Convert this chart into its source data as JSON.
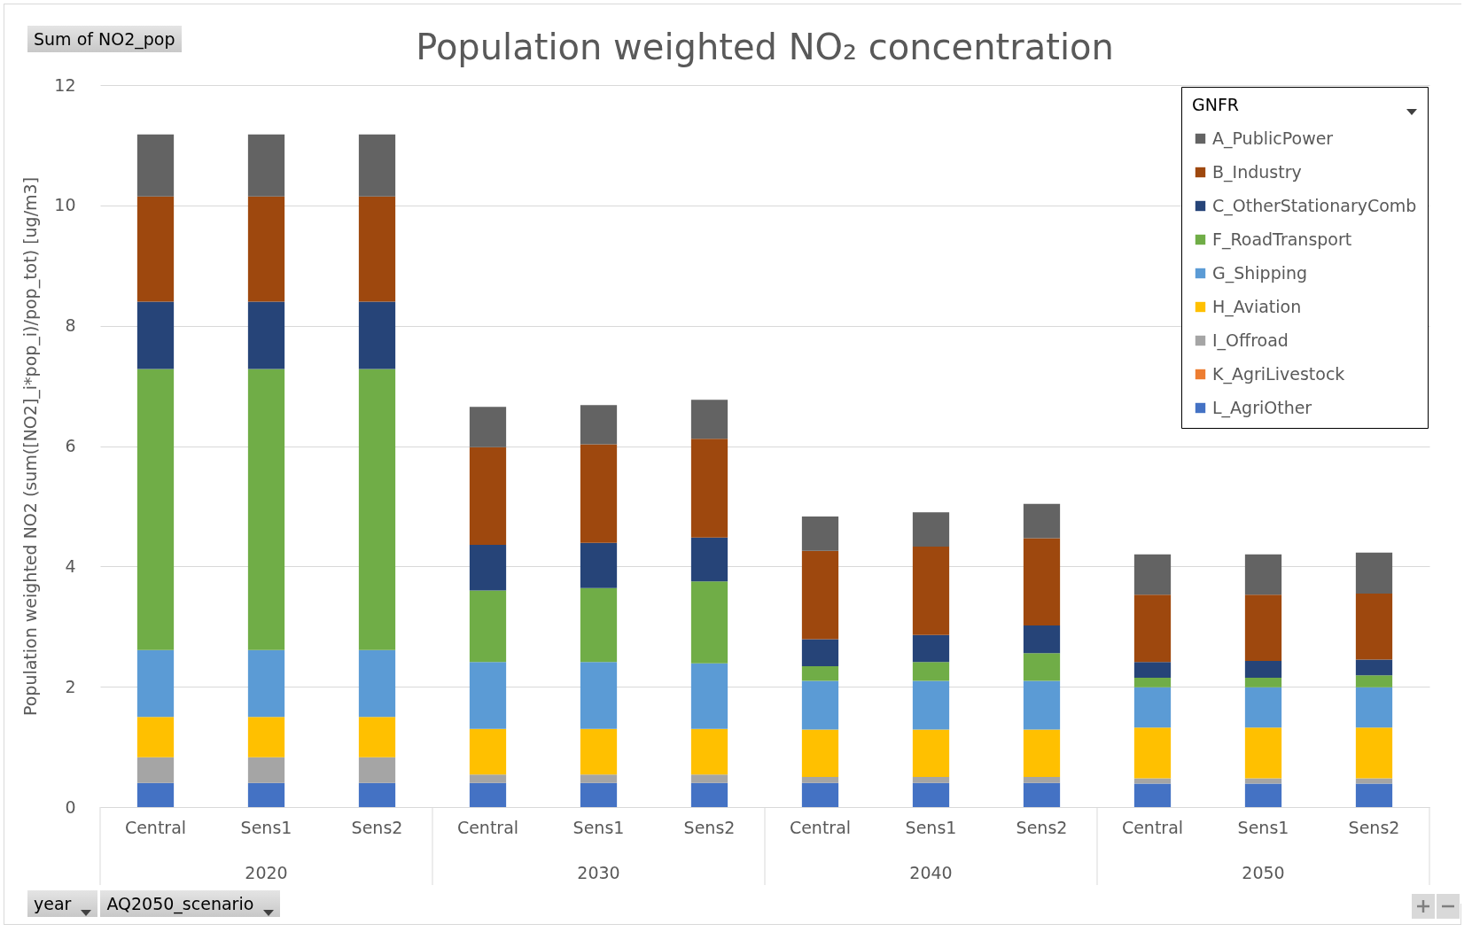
{
  "chart_data": {
    "type": "bar",
    "stacked": true,
    "title": "Population weighted NO₂ concentration",
    "ylabel": "Population weighted NO2 (sum([NO2]_i*pop_i)/pop_tot) [ug/m3]",
    "legend_title": "GNFR",
    "legend": "top right",
    "grid": "y",
    "categories": [
      "Central",
      "Sens1",
      "Sens2",
      "Central",
      "Sens1",
      "Sens2",
      "Central",
      "Sens1",
      "Sens2",
      "Central",
      "Sens1",
      "Sens2"
    ],
    "annotations": [
      "Sum of NO2_pop",
      "year",
      "AQ2050_scenario",
      "2020",
      "2030",
      "2040",
      "2050"
    ],
    "ylim": [
      0,
      12
    ],
    "yticks": [
      0,
      2,
      4,
      6,
      8,
      10,
      12
    ],
    "series": [
      {
        "name": "L_AgriOther",
        "color": "#4472c4",
        "values": [
          0.4,
          0.4,
          0.4,
          0.4,
          0.4,
          0.4,
          0.4,
          0.4,
          0.4,
          0.39,
          0.39,
          0.39
        ]
      },
      {
        "name": "K_AgriLivestock",
        "color": "#ed7d31",
        "values": [
          0,
          0,
          0,
          0,
          0,
          0,
          0,
          0,
          0,
          0,
          0,
          0
        ]
      },
      {
        "name": "I_Offroad",
        "color": "#a5a5a5",
        "values": [
          0.43,
          0.43,
          0.43,
          0.14,
          0.14,
          0.14,
          0.1,
          0.1,
          0.1,
          0.09,
          0.09,
          0.09
        ]
      },
      {
        "name": "H_Aviation",
        "color": "#ffc000",
        "values": [
          0.67,
          0.67,
          0.67,
          0.76,
          0.76,
          0.76,
          0.79,
          0.79,
          0.79,
          0.84,
          0.84,
          0.84
        ]
      },
      {
        "name": "G_Shipping",
        "color": "#5b9bd5",
        "values": [
          1.11,
          1.11,
          1.11,
          1.11,
          1.11,
          1.09,
          0.81,
          0.81,
          0.81,
          0.67,
          0.67,
          0.67
        ]
      },
      {
        "name": "F_RoadTransport",
        "color": "#70ad47",
        "values": [
          4.67,
          4.67,
          4.67,
          1.19,
          1.23,
          1.36,
          0.24,
          0.31,
          0.46,
          0.16,
          0.16,
          0.2
        ]
      },
      {
        "name": "C_OtherStationaryComb",
        "color": "#264478",
        "values": [
          1.12,
          1.12,
          1.12,
          0.76,
          0.75,
          0.73,
          0.45,
          0.45,
          0.46,
          0.26,
          0.28,
          0.26
        ]
      },
      {
        "name": "B_Industry",
        "color": "#9e480e",
        "values": [
          1.75,
          1.75,
          1.75,
          1.62,
          1.64,
          1.64,
          1.47,
          1.47,
          1.45,
          1.12,
          1.1,
          1.1
        ]
      },
      {
        "name": "A_PublicPower",
        "color": "#636363",
        "values": [
          1.03,
          1.03,
          1.03,
          0.67,
          0.65,
          0.65,
          0.57,
          0.57,
          0.57,
          0.67,
          0.67,
          0.68
        ]
      }
    ]
  }
}
